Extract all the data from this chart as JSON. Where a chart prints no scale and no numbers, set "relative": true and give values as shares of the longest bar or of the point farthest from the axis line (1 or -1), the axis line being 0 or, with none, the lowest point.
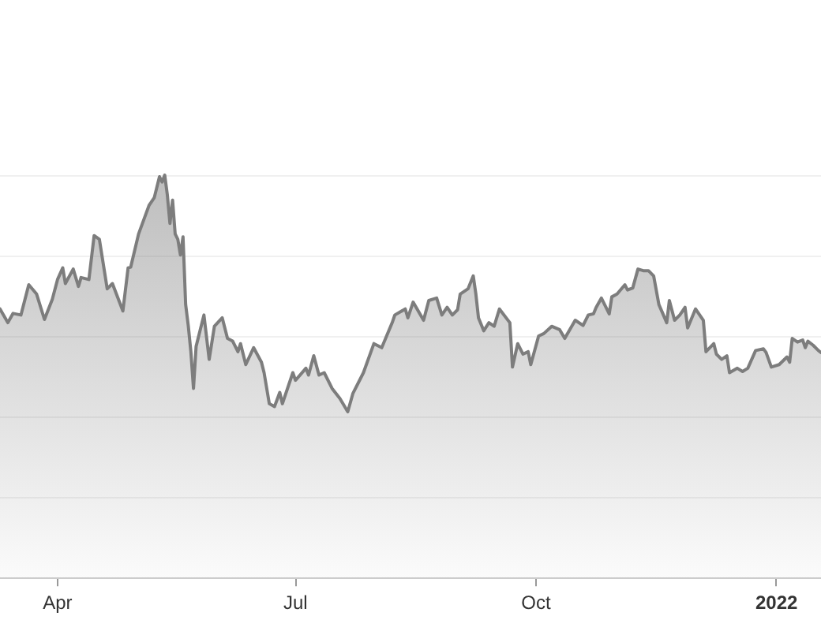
{
  "chart_data": {
    "type": "area",
    "relative": true,
    "color": "#7d7d7d",
    "grid": "y",
    "legend": false,
    "xlim": [
      "2021-03-10",
      "2022-01-18"
    ],
    "xticks": [
      {
        "value": "2021-04-01",
        "label": "Apr"
      },
      {
        "value": "2021-07-01",
        "label": "Jul"
      },
      {
        "value": "2021-10-01",
        "label": "Oct"
      },
      {
        "value": "2022-01-01",
        "label": "2022"
      }
    ],
    "x": [
      "2021-03-10",
      "2021-03-13",
      "2021-03-15",
      "2021-03-18",
      "2021-03-21",
      "2021-03-24",
      "2021-03-27",
      "2021-03-30",
      "2021-04-01",
      "2021-04-03",
      "2021-04-04",
      "2021-04-07",
      "2021-04-09",
      "2021-04-10",
      "2021-04-13",
      "2021-04-15",
      "2021-04-17",
      "2021-04-20",
      "2021-04-22",
      "2021-04-26",
      "2021-04-28",
      "2021-04-29",
      "2021-05-02",
      "2021-05-06",
      "2021-05-08",
      "2021-05-10",
      "2021-05-11",
      "2021-05-12",
      "2021-05-13",
      "2021-05-14",
      "2021-05-15",
      "2021-05-16",
      "2021-05-17",
      "2021-05-18",
      "2021-05-19",
      "2021-05-20",
      "2021-05-21",
      "2021-05-22",
      "2021-05-23",
      "2021-05-24",
      "2021-05-27",
      "2021-05-29",
      "2021-05-31",
      "2021-06-03",
      "2021-06-05",
      "2021-06-07",
      "2021-06-09",
      "2021-06-10",
      "2021-06-12",
      "2021-06-15",
      "2021-06-18",
      "2021-06-19",
      "2021-06-21",
      "2021-06-23",
      "2021-06-25",
      "2021-06-26",
      "2021-06-30",
      "2021-07-01",
      "2021-07-05",
      "2021-07-06",
      "2021-07-08",
      "2021-07-10",
      "2021-07-12",
      "2021-07-15",
      "2021-07-18",
      "2021-07-21",
      "2021-07-23",
      "2021-07-27",
      "2021-07-31",
      "2021-08-03",
      "2021-08-07",
      "2021-08-08",
      "2021-08-12",
      "2021-08-13",
      "2021-08-15",
      "2021-08-19",
      "2021-08-21",
      "2021-08-24",
      "2021-08-26",
      "2021-08-28",
      "2021-08-30",
      "2021-09-01",
      "2021-09-02",
      "2021-09-05",
      "2021-09-07",
      "2021-09-08",
      "2021-09-09",
      "2021-09-11",
      "2021-09-13",
      "2021-09-15",
      "2021-09-17",
      "2021-09-21",
      "2021-09-22",
      "2021-09-24",
      "2021-09-26",
      "2021-09-28",
      "2021-09-29",
      "2021-10-02",
      "2021-10-04",
      "2021-10-07",
      "2021-10-10",
      "2021-10-12",
      "2021-10-16",
      "2021-10-19",
      "2021-10-21",
      "2021-10-23",
      "2021-10-24",
      "2021-10-26",
      "2021-10-29",
      "2021-10-30",
      "2021-11-01",
      "2021-11-04",
      "2021-11-05",
      "2021-11-07",
      "2021-11-09",
      "2021-11-11",
      "2021-11-13",
      "2021-11-15",
      "2021-11-17",
      "2021-11-20",
      "2021-11-21",
      "2021-11-23",
      "2021-11-25",
      "2021-11-27",
      "2021-11-28",
      "2021-12-01",
      "2021-12-04",
      "2021-12-05",
      "2021-12-08",
      "2021-12-09",
      "2021-12-11",
      "2021-12-13",
      "2021-12-14",
      "2021-12-17",
      "2021-12-19",
      "2021-12-21",
      "2021-12-24",
      "2021-12-27",
      "2021-12-28",
      "2021-12-30",
      "2022-01-02",
      "2022-01-05",
      "2022-01-06",
      "2022-01-07",
      "2022-01-09",
      "2022-01-11",
      "2022-01-12",
      "2022-01-13",
      "2022-01-15",
      "2022-01-17",
      "2022-01-18"
    ],
    "values": [
      0.668,
      0.634,
      0.657,
      0.653,
      0.728,
      0.705,
      0.642,
      0.692,
      0.741,
      0.77,
      0.731,
      0.767,
      0.724,
      0.746,
      0.741,
      0.85,
      0.841,
      0.718,
      0.731,
      0.663,
      0.77,
      0.772,
      0.854,
      0.925,
      0.944,
      0.996,
      0.983,
      1,
      0.951,
      0.88,
      0.938,
      0.854,
      0.841,
      0.802,
      0.847,
      0.679,
      0.627,
      0.562,
      0.471,
      0.575,
      0.653,
      0.543,
      0.625,
      0.646,
      0.595,
      0.588,
      0.562,
      0.582,
      0.53,
      0.572,
      0.536,
      0.51,
      0.433,
      0.426,
      0.461,
      0.433,
      0.51,
      0.491,
      0.521,
      0.504,
      0.552,
      0.504,
      0.51,
      0.471,
      0.446,
      0.413,
      0.459,
      0.51,
      0.582,
      0.572,
      0.634,
      0.653,
      0.668,
      0.646,
      0.685,
      0.64,
      0.689,
      0.695,
      0.653,
      0.672,
      0.653,
      0.666,
      0.705,
      0.718,
      0.75,
      0.705,
      0.646,
      0.614,
      0.634,
      0.625,
      0.668,
      0.634,
      0.524,
      0.582,
      0.556,
      0.562,
      0.53,
      0.601,
      0.607,
      0.625,
      0.617,
      0.595,
      0.64,
      0.627,
      0.653,
      0.656,
      0.672,
      0.695,
      0.656,
      0.698,
      0.705,
      0.728,
      0.715,
      0.72,
      0.767,
      0.763,
      0.763,
      0.75,
      0.679,
      0.634,
      0.689,
      0.64,
      0.653,
      0.672,
      0.621,
      0.668,
      0.64,
      0.562,
      0.582,
      0.556,
      0.543,
      0.552,
      0.51,
      0.521,
      0.513,
      0.521,
      0.565,
      0.569,
      0.56,
      0.524,
      0.53,
      0.549,
      0.536,
      0.595,
      0.586,
      0.591,
      0.572,
      0.588,
      0.578,
      0.565,
      0.56
    ]
  }
}
